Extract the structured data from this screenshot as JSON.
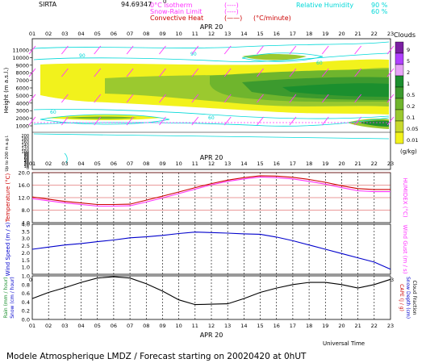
{
  "header": {
    "site": "SIRTA",
    "coords": "94.69347",
    "zero_label": "0",
    "legend_lines": [
      {
        "label": "0°C isotherm",
        "symbol": "(----)",
        "color": "#ff33ff"
      },
      {
        "label": "Snow-Rain Limit",
        "symbol": "(----)",
        "color": "#ff33ff"
      },
      {
        "label": "Convective Heat",
        "symbol": "(——)",
        "color": "#cc0000",
        "unit": "(°C/minute)"
      }
    ],
    "humidity": [
      {
        "label": "Relative Humidity",
        "value": "90 %"
      },
      {
        "label": "",
        "value": "60 %"
      }
    ]
  },
  "colors": {
    "cyan": "#00d8d8",
    "magenta": "#ff33ff",
    "red": "#cc0000",
    "blue": "#0000cc",
    "ink": "#000000"
  },
  "hours": [
    "01",
    "02",
    "03",
    "04",
    "05",
    "06",
    "07",
    "08",
    "09",
    "10",
    "11",
    "12",
    "13",
    "14",
    "15",
    "16",
    "17",
    "18",
    "19",
    "20",
    "21",
    "22",
    "23"
  ],
  "date_label": "APR 20",
  "universal_time": "Universal Time",
  "footer": "Modele Atmospherique LMDZ / Forecast starting on 20020420 at 0hUT",
  "chart_data": [
    {
      "type": "heatmap",
      "name": "clouds",
      "title": "Clouds",
      "unit": "(g/kg)",
      "ylabel": "Height (m a.s.l.)",
      "ylabel_low": "Up to 200 m a.g.l.",
      "yticks_upper": [
        1000,
        2000,
        3000,
        4000,
        5000,
        6000,
        7000,
        8000,
        9000,
        10000,
        11000
      ],
      "yticks_lower": [
        0,
        10,
        20,
        30,
        40,
        50,
        60,
        70,
        80,
        90,
        100,
        120,
        140,
        160,
        180,
        200
      ],
      "contour_labels": [
        "90",
        "90",
        "60",
        "60",
        "60"
      ],
      "colorbar": [
        {
          "value": "9",
          "color": "#7b1fa2"
        },
        {
          "value": "5",
          "color": "#b040ff"
        },
        {
          "value": "2",
          "color": "#e7a3f7"
        },
        {
          "value": "1",
          "color": "#1b8f2e"
        },
        {
          "value": "0.5",
          "color": "#3c9a2e"
        },
        {
          "value": "0.2",
          "color": "#6fb52d"
        },
        {
          "value": "0.1",
          "color": "#9bc92f"
        },
        {
          "value": "0.05",
          "color": "#c8d92e"
        },
        {
          "value": "0.01",
          "color": "#f2f21c"
        }
      ]
    },
    {
      "type": "line",
      "name": "temperature",
      "ylabel": "Temperature (°C)",
      "ylabel_right": "HUMIDEX (°C)",
      "ylim": [
        4,
        20
      ],
      "yticks": [
        "4.0",
        "8.0",
        "12.0",
        "16.0",
        "20.0"
      ],
      "series": [
        {
          "color": "#cc0000",
          "values": [
            12.2,
            11.5,
            10.8,
            10.3,
            9.8,
            9.8,
            9.9,
            11.2,
            12.5,
            13.8,
            15.2,
            16.5,
            17.6,
            18.4,
            19.0,
            18.9,
            18.5,
            17.8,
            16.9,
            15.8,
            14.9,
            14.6,
            14.6
          ]
        },
        {
          "color": "#ff33ff",
          "values": [
            11.7,
            11.0,
            10.3,
            9.8,
            9.3,
            9.3,
            9.4,
            10.6,
            11.9,
            13.3,
            14.7,
            16.1,
            17.2,
            18.0,
            18.6,
            18.4,
            18.0,
            17.2,
            16.3,
            15.2,
            14.2,
            13.9,
            13.9
          ]
        }
      ]
    },
    {
      "type": "line",
      "name": "wind",
      "ylabel": "Wind Speed (m / s)",
      "ylabel_right": "Wind Gust (m / s)",
      "ylim": [
        0.5,
        4.0
      ],
      "yticks": [
        "1.0",
        "1.5",
        "2.0",
        "2.5",
        "3.0",
        "3.5",
        "4.0"
      ],
      "series": [
        {
          "color": "#0000cc",
          "values": [
            2.25,
            2.4,
            2.55,
            2.65,
            2.78,
            2.9,
            3.05,
            3.12,
            3.22,
            3.35,
            3.45,
            3.42,
            3.38,
            3.33,
            3.3,
            3.1,
            2.85,
            2.55,
            2.25,
            1.95,
            1.65,
            1.35,
            0.85
          ]
        }
      ]
    },
    {
      "type": "line",
      "name": "rain",
      "ylabel": "Rain (mm / hour)",
      "ylabel2": "Snow (cm / hour)",
      "ylabel_right": "CAPE (J / g)",
      "ylabel_right2": "Snow Depth (cm)",
      "ylabel_right3": "Cloud Fraction",
      "ylim": [
        0,
        1
      ],
      "yticks": [
        "0.0",
        "0.2",
        "0.4",
        "0.6",
        "0.8",
        "1.0"
      ],
      "series": [
        {
          "color": "#000000",
          "values": [
            0.48,
            0.62,
            0.73,
            0.85,
            0.95,
            0.98,
            0.95,
            0.82,
            0.65,
            0.45,
            0.34,
            0.35,
            0.36,
            0.48,
            0.62,
            0.72,
            0.8,
            0.85,
            0.85,
            0.8,
            0.72,
            0.8,
            0.92
          ]
        }
      ]
    }
  ]
}
